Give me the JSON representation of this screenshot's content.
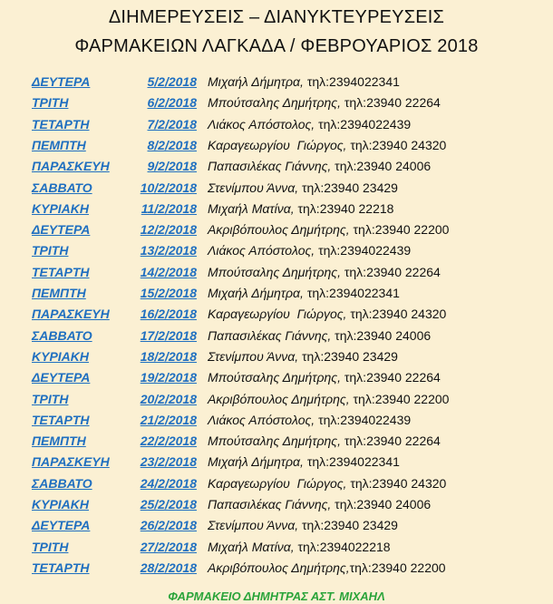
{
  "header": {
    "line1": "ΔΙΗΜΕΡΕΥΣΕΙΣ – ΔΙΑΝΥΚΤΕΥΡΕΥΣΕΙΣ",
    "line2": "ΦΑΡΜΑΚΕΙΩΝ ΛΑΓΚΑΔΑ / ΦΕΒΡΟΥΑΡΙΟΣ 2018"
  },
  "colors": {
    "link": "#1f6fc0",
    "footer": "#2aa43a",
    "background": "#fbf0d3"
  },
  "rows": [
    {
      "day": "ΔΕΥΤΕΡΑ",
      "date": "5/2/2018",
      "name": "Μιχαήλ Δήμητρα,",
      "phone": " τηλ:2394022341"
    },
    {
      "day": "ΤΡΙΤΗ",
      "date": "6/2/2018",
      "name": "Μπούτσαλης Δημήτρης,",
      "phone": " τηλ:23940 22264"
    },
    {
      "day": "ΤΕΤΑΡΤΗ",
      "date": "7/2/2018",
      "name": "Λιάκος Απόστολος,",
      "phone": " τηλ:2394022439"
    },
    {
      "day": "ΠΕΜΠΤΗ",
      "date": "8/2/2018",
      "name": "Καραγεωργίου  Γιώργος,",
      "phone": " τηλ:23940 24320"
    },
    {
      "day": "ΠΑΡΑΣΚΕΥΗ",
      "date": "9/2/2018",
      "name": "Παπασιλέκας Γιάννης,",
      "phone": " τηλ:23940 24006"
    },
    {
      "day": "ΣΑΒΒΑΤΟ",
      "date": "10/2/2018",
      "name": "Στενίμπου Άννα,",
      "phone": " τηλ:23940 23429"
    },
    {
      "day": "ΚΥΡΙΑΚΗ",
      "date": "11/2/2018",
      "name": "Μιχαήλ Ματίνα,",
      "phone": " τηλ:23940 22218"
    },
    {
      "day": "ΔΕΥΤΕΡΑ",
      "date": "12/2/2018",
      "name": "Ακριβόπουλος Δημήτρης,",
      "phone": " τηλ:23940 22200"
    },
    {
      "day": "ΤΡΙΤΗ",
      "date": "13/2/2018",
      "name": "Λιάκος Απόστολος,",
      "phone": " τηλ:2394022439"
    },
    {
      "day": "ΤΕΤΑΡΤΗ",
      "date": "14/2/2018",
      "name": "Μπούτσαλης Δημήτρης,",
      "phone": " τηλ:23940 22264"
    },
    {
      "day": "ΠΕΜΠΤΗ",
      "date": "15/2/2018",
      "name": "Μιχαήλ Δήμητρα,",
      "phone": " τηλ:2394022341"
    },
    {
      "day": "ΠΑΡΑΣΚΕΥΗ",
      "date": "16/2/2018",
      "name": "Καραγεωργίου  Γιώργος,",
      "phone": " τηλ:23940 24320"
    },
    {
      "day": "ΣΑΒΒΑΤΟ",
      "date": "17/2/2018",
      "name": "Παπασιλέκας Γιάννης,",
      "phone": " τηλ:23940 24006"
    },
    {
      "day": "ΚΥΡΙΑΚΗ",
      "date": "18/2/2018",
      "name": "Στενίμπου Άννα,",
      "phone": " τηλ:23940 23429"
    },
    {
      "day": "ΔΕΥΤΕΡΑ",
      "date": "19/2/2018",
      "name": "Μπούτσαλης Δημήτρης,",
      "phone": " τηλ:23940 22264"
    },
    {
      "day": "ΤΡΙΤΗ",
      "date": "20/2/2018",
      "name": "Ακριβόπουλος Δημήτρης,",
      "phone": " τηλ:23940 22200"
    },
    {
      "day": "ΤΕΤΑΡΤΗ",
      "date": "21/2/2018",
      "name": "Λιάκος Απόστολος,",
      "phone": " τηλ:2394022439"
    },
    {
      "day": "ΠΕΜΠΤΗ",
      "date": "22/2/2018",
      "name": "Μπούτσαλης Δημήτρης,",
      "phone": " τηλ:23940 22264"
    },
    {
      "day": "ΠΑΡΑΣΚΕΥΗ",
      "date": "23/2/2018",
      "name": "Μιχαήλ Δήμητρα,",
      "phone": " τηλ:2394022341"
    },
    {
      "day": "ΣΑΒΒΑΤΟ",
      "date": "24/2/2018",
      "name": "Καραγεωργίου  Γιώργος,",
      "phone": " τηλ:23940 24320"
    },
    {
      "day": "ΚΥΡΙΑΚΗ",
      "date": "25/2/2018",
      "name": "Παπασιλέκας Γιάννης,",
      "phone": " τηλ:23940 24006"
    },
    {
      "day": "ΔΕΥΤΕΡΑ",
      "date": "26/2/2018",
      "name": "Στενίμπου Άννα,",
      "phone": " τηλ:23940 23429"
    },
    {
      "day": "ΤΡΙΤΗ",
      "date": "27/2/2018",
      "name": "Μιχαήλ Ματίνα,",
      "phone": " τηλ:2394022218"
    },
    {
      "day": "ΤΕΤΑΡΤΗ",
      "date": "28/2/2018",
      "name": "Ακριβόπουλος Δημήτρης,",
      "phone": "τηλ:23940 22200"
    }
  ],
  "footer": "ΦΑΡΜΑΚΕΙΟ ΔΗΜΗΤΡΑΣ ΑΣΤ. ΜΙΧΑΗΛ"
}
